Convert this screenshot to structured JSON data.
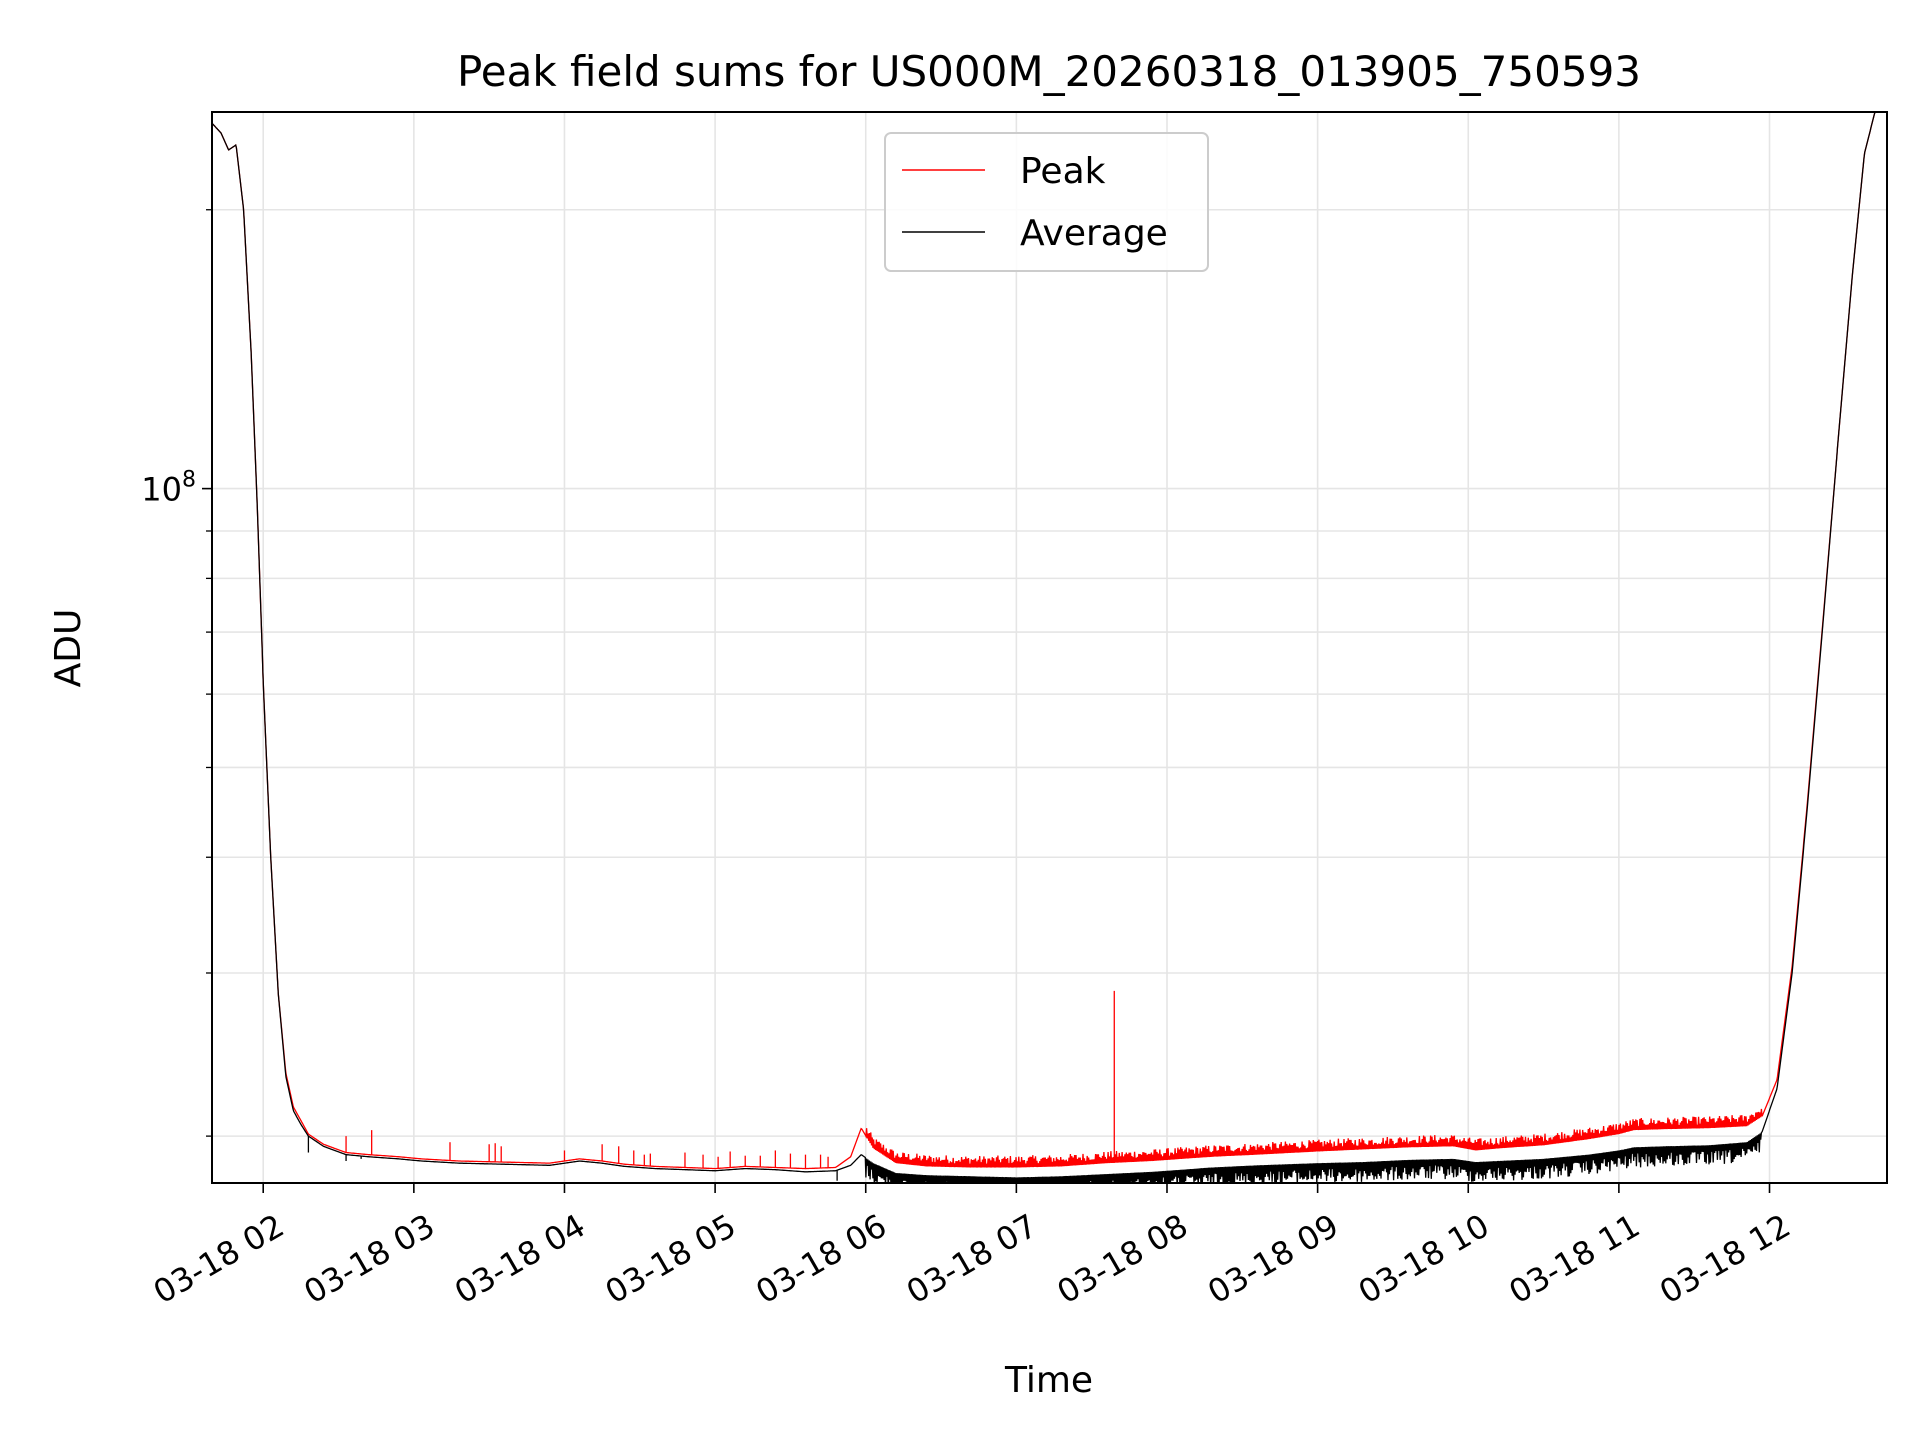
{
  "chart_data": {
    "type": "line",
    "title": "Peak field sums for US000M_20260318_013905_750593",
    "xlabel": "Time",
    "ylabel": "ADU",
    "yscale": "log",
    "ylim": [
      17800000,
      255000000
    ],
    "xlim": [
      1.66,
      12.78
    ],
    "grid": true,
    "legend": {
      "location": "upper center",
      "entries": [
        {
          "name": "Peak",
          "color": "#ff0000"
        },
        {
          "name": "Average",
          "color": "#000000"
        }
      ]
    },
    "y_major_ticks": [
      {
        "value": 100000000,
        "label_base": "10",
        "label_exp": "8"
      }
    ],
    "y_minor_ticks": [
      20000000,
      30000000,
      40000000,
      50000000,
      60000000,
      70000000,
      80000000,
      90000000,
      200000000
    ],
    "x_ticks": [
      {
        "value": 2,
        "label": "03-18 02"
      },
      {
        "value": 3,
        "label": "03-18 03"
      },
      {
        "value": 4,
        "label": "03-18 04"
      },
      {
        "value": 5,
        "label": "03-18 05"
      },
      {
        "value": 6,
        "label": "03-18 06"
      },
      {
        "value": 7,
        "label": "03-18 07"
      },
      {
        "value": 8,
        "label": "03-18 08"
      },
      {
        "value": 9,
        "label": "03-18 09"
      },
      {
        "value": 10,
        "label": "03-18 10"
      },
      {
        "value": 11,
        "label": "03-18 11"
      },
      {
        "value": 12,
        "label": "03-18 12"
      }
    ],
    "series": [
      {
        "name": "Average",
        "color": "#000000",
        "x": [
          1.66,
          1.72,
          1.77,
          1.82,
          1.87,
          1.92,
          1.96,
          2.0,
          2.05,
          2.1,
          2.15,
          2.2,
          2.25,
          2.3,
          2.4,
          2.55,
          2.7,
          2.9,
          3.05,
          3.3,
          3.6,
          3.9,
          4.1,
          4.25,
          4.4,
          4.6,
          4.8,
          5.0,
          5.2,
          5.4,
          5.6,
          5.8,
          5.9,
          5.97,
          6.05,
          6.2,
          6.4,
          6.7,
          7.0,
          7.3,
          7.6,
          7.9,
          8.3,
          8.6,
          9.0,
          9.3,
          9.6,
          9.9,
          10.05,
          10.2,
          10.5,
          10.8,
          11.0,
          11.1,
          11.3,
          11.6,
          11.85,
          11.95,
          12.05,
          12.15,
          12.25,
          12.35,
          12.45,
          12.55,
          12.63,
          12.7,
          12.78
        ],
        "y": [
          248000000,
          242000000,
          232000000,
          235000000,
          200000000,
          140000000,
          96000000,
          62000000,
          40000000,
          28500000,
          23200000,
          21300000,
          20600000,
          20000000,
          19500000,
          19100000,
          19000000,
          18900000,
          18800000,
          18700000,
          18650000,
          18600000,
          18800000,
          18700000,
          18550000,
          18450000,
          18400000,
          18350000,
          18450000,
          18400000,
          18300000,
          18350000,
          18600000,
          19100000,
          18700000,
          18250000,
          18150000,
          18100000,
          18050000,
          18100000,
          18200000,
          18300000,
          18500000,
          18600000,
          18700000,
          18750000,
          18850000,
          18900000,
          18750000,
          18800000,
          18900000,
          19100000,
          19300000,
          19450000,
          19500000,
          19550000,
          19700000,
          20200000,
          22500000,
          30000000,
          45000000,
          70000000,
          110000000,
          170000000,
          230000000,
          255000000,
          255000000
        ]
      },
      {
        "name": "Peak",
        "color": "#ff0000",
        "x": [
          1.66,
          1.72,
          1.77,
          1.82,
          1.87,
          1.92,
          1.96,
          2.0,
          2.05,
          2.1,
          2.15,
          2.2,
          2.25,
          2.3,
          2.4,
          2.55,
          2.7,
          2.9,
          3.05,
          3.3,
          3.6,
          3.9,
          4.1,
          4.25,
          4.4,
          4.6,
          4.8,
          5.0,
          5.2,
          5.4,
          5.6,
          5.8,
          5.9,
          5.97,
          6.05,
          6.2,
          6.4,
          6.7,
          7.0,
          7.3,
          7.6,
          7.9,
          8.3,
          8.6,
          9.0,
          9.3,
          9.6,
          9.9,
          10.05,
          10.2,
          10.5,
          10.8,
          11.0,
          11.1,
          11.3,
          11.6,
          11.85,
          11.95,
          12.05,
          12.15,
          12.25,
          12.35,
          12.45,
          12.55,
          12.63,
          12.7,
          12.78
        ],
        "y": [
          248000000,
          242000000,
          232000000,
          235000000,
          200000000,
          140000000,
          96000000,
          62000000,
          40000000,
          28500000,
          23400000,
          21500000,
          20800000,
          20100000,
          19600000,
          19200000,
          19100000,
          19000000,
          18900000,
          18800000,
          18750000,
          18700000,
          18900000,
          18800000,
          18650000,
          18550000,
          18500000,
          18450000,
          18550000,
          18500000,
          18450000,
          18500000,
          19000000,
          20400000,
          19400000,
          18700000,
          18550000,
          18500000,
          18500000,
          18550000,
          18700000,
          18800000,
          19000000,
          19100000,
          19250000,
          19350000,
          19450000,
          19500000,
          19300000,
          19400000,
          19550000,
          19850000,
          20100000,
          20300000,
          20350000,
          20400000,
          20500000,
          21000000,
          23000000,
          30500000,
          45500000,
          70500000,
          110000000,
          170000000,
          230000000,
          255000000,
          255000000
        ]
      }
    ],
    "noise_band": {
      "x_start": 6.0,
      "x_end": 11.95,
      "average_dip_fraction": 0.05,
      "peak_rise_fraction": 0.03
    },
    "early_dips": [
      {
        "x": 2.3,
        "y": 19200000
      },
      {
        "x": 2.55,
        "y": 18800000
      },
      {
        "x": 2.65,
        "y": 18900000
      },
      {
        "x": 5.81,
        "y": 17900000
      }
    ],
    "peak_spikes": [
      {
        "x": 2.55,
        "y": 20000000
      },
      {
        "x": 2.72,
        "y": 20300000
      },
      {
        "x": 3.24,
        "y": 19700000
      },
      {
        "x": 3.5,
        "y": 19600000
      },
      {
        "x": 3.54,
        "y": 19650000
      },
      {
        "x": 3.58,
        "y": 19500000
      },
      {
        "x": 4.0,
        "y": 19300000
      },
      {
        "x": 4.25,
        "y": 19600000
      },
      {
        "x": 4.36,
        "y": 19500000
      },
      {
        "x": 4.46,
        "y": 19300000
      },
      {
        "x": 4.53,
        "y": 19100000
      },
      {
        "x": 4.57,
        "y": 19150000
      },
      {
        "x": 4.8,
        "y": 19200000
      },
      {
        "x": 4.92,
        "y": 19100000
      },
      {
        "x": 5.02,
        "y": 19000000
      },
      {
        "x": 5.1,
        "y": 19250000
      },
      {
        "x": 5.2,
        "y": 19050000
      },
      {
        "x": 5.3,
        "y": 19050000
      },
      {
        "x": 5.4,
        "y": 19300000
      },
      {
        "x": 5.5,
        "y": 19150000
      },
      {
        "x": 5.6,
        "y": 19100000
      },
      {
        "x": 5.7,
        "y": 19100000
      },
      {
        "x": 5.75,
        "y": 19000000
      },
      {
        "x": 7.65,
        "y": 28700000
      }
    ]
  }
}
